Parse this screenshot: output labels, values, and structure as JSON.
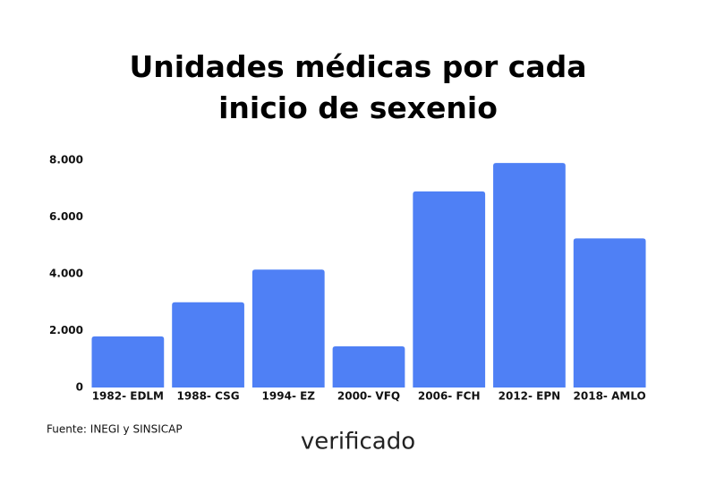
{
  "chart_data": {
    "type": "bar",
    "title": "Unidades médicas por cada inicio de sexenio",
    "categories": [
      "1982- EDLM",
      "1988- CSG",
      "1994- EZ",
      "2000- VFQ",
      "2006- FCH",
      "2012- EPN",
      "2018- AMLO"
    ],
    "values": [
      1800,
      3000,
      4150,
      1450,
      6900,
      7900,
      5250
    ],
    "color": "#4f80f5",
    "ylim": [
      0,
      8000
    ],
    "yticks": [
      0,
      {
        "value": 2000,
        "label": "2.000"
      },
      {
        "value": 4000,
        "label": "4.000"
      },
      {
        "value": 6000,
        "label": "6.000"
      },
      {
        "value": 8000,
        "label": "8.000"
      }
    ],
    "grid": false,
    "source": "Fuente: INEGI y SINSICAP",
    "logo": "verificado"
  }
}
